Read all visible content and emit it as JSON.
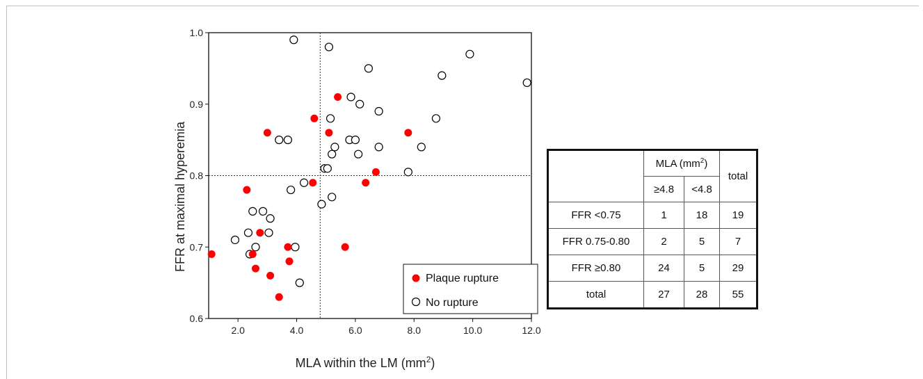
{
  "chart_data": {
    "type": "scatter",
    "xlabel": "MLA within the LM (mm",
    "xlabel_sup": "2",
    "xlabel_end": ")",
    "ylabel": "FFR at maximal hyperemia",
    "xlim": [
      1.0,
      12.0
    ],
    "ylim": [
      0.6,
      1.0
    ],
    "x_ticks": [
      "2.0",
      "4.0",
      "6.0",
      "8.0",
      "10.0",
      "12.0"
    ],
    "y_ticks": [
      "0.6",
      "0.7",
      "0.8",
      "0.9",
      "1.0"
    ],
    "reference_lines": {
      "x": 4.8,
      "y": 0.8
    },
    "legend": {
      "position": "bottom-right",
      "entries": [
        "Plaque rupture",
        "No rupture"
      ]
    },
    "series": [
      {
        "name": "Plaque rupture",
        "marker": "filled-circle",
        "color": "#ff0000",
        "points": [
          [
            1.1,
            0.69
          ],
          [
            2.3,
            0.78
          ],
          [
            2.5,
            0.69
          ],
          [
            2.6,
            0.67
          ],
          [
            2.75,
            0.72
          ],
          [
            3.0,
            0.86
          ],
          [
            3.1,
            0.66
          ],
          [
            3.4,
            0.63
          ],
          [
            3.7,
            0.7
          ],
          [
            3.75,
            0.68
          ],
          [
            4.55,
            0.79
          ],
          [
            4.6,
            0.88
          ],
          [
            5.1,
            0.86
          ],
          [
            5.4,
            0.91
          ],
          [
            5.65,
            0.7
          ],
          [
            6.35,
            0.79
          ],
          [
            6.7,
            0.805
          ],
          [
            7.8,
            0.86
          ]
        ]
      },
      {
        "name": "No rupture",
        "marker": "open-circle",
        "color": "#000000",
        "points": [
          [
            1.9,
            0.71
          ],
          [
            2.35,
            0.72
          ],
          [
            2.4,
            0.69
          ],
          [
            2.5,
            0.75
          ],
          [
            2.6,
            0.7
          ],
          [
            2.85,
            0.75
          ],
          [
            3.05,
            0.72
          ],
          [
            3.1,
            0.74
          ],
          [
            3.4,
            0.85
          ],
          [
            3.7,
            0.85
          ],
          [
            3.8,
            0.78
          ],
          [
            3.9,
            0.99
          ],
          [
            3.95,
            0.7
          ],
          [
            4.1,
            0.65
          ],
          [
            4.25,
            0.79
          ],
          [
            4.85,
            0.76
          ],
          [
            4.95,
            0.81
          ],
          [
            5.05,
            0.81
          ],
          [
            5.1,
            0.98
          ],
          [
            5.15,
            0.88
          ],
          [
            5.2,
            0.83
          ],
          [
            5.2,
            0.77
          ],
          [
            5.3,
            0.84
          ],
          [
            5.8,
            0.85
          ],
          [
            5.85,
            0.91
          ],
          [
            6.0,
            0.85
          ],
          [
            6.1,
            0.83
          ],
          [
            6.15,
            0.9
          ],
          [
            6.45,
            0.95
          ],
          [
            6.8,
            0.89
          ],
          [
            6.8,
            0.84
          ],
          [
            7.8,
            0.805
          ],
          [
            8.25,
            0.84
          ],
          [
            8.75,
            0.88
          ],
          [
            8.95,
            0.94
          ],
          [
            9.9,
            0.97
          ],
          [
            11.85,
            0.93
          ]
        ]
      }
    ]
  },
  "table": {
    "header": {
      "group": "MLA (mm",
      "group_sup": "2",
      "group_end": ")",
      "col1": "≥4.8",
      "col2": "<4.8",
      "total": "total"
    },
    "rows": [
      {
        "label": "FFR <0.75",
        "a": "1",
        "b": "18",
        "total": "19"
      },
      {
        "label": "FFR 0.75-0.80",
        "a": "2",
        "b": "5",
        "total": "7"
      },
      {
        "label": "FFR ≥0.80",
        "a": "24",
        "b": "5",
        "total": "29"
      },
      {
        "label": "total",
        "a": "27",
        "b": "28",
        "total": "55"
      }
    ]
  }
}
